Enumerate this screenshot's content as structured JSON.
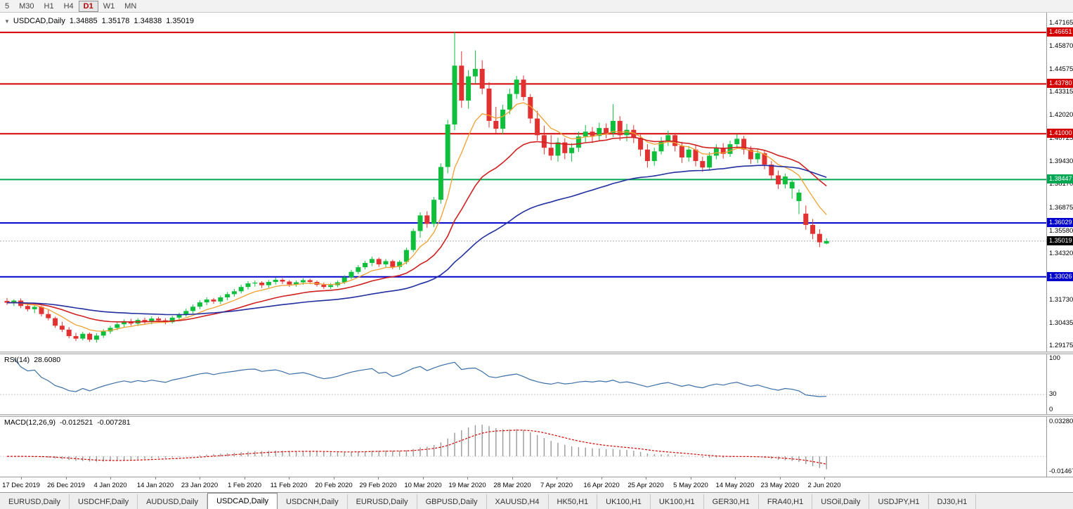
{
  "toolbar": {
    "timeframes": [
      {
        "label": "5",
        "active": false
      },
      {
        "label": "M30",
        "active": false
      },
      {
        "label": "H1",
        "active": false
      },
      {
        "label": "H4",
        "active": false
      },
      {
        "label": "D1",
        "active": true
      },
      {
        "label": "W1",
        "active": false
      },
      {
        "label": "MN",
        "active": false
      }
    ]
  },
  "chart": {
    "dropdown_icon": "▼",
    "symbol": "USDCAD,Daily",
    "ohlc": {
      "open": "1.34885",
      "high": "1.35178",
      "low": "1.34838",
      "close": "1.35019"
    },
    "colors": {
      "up": "#0fbf3c",
      "down": "#e23131",
      "ma_fast": "#efa02f",
      "ma_mid": "#d02020",
      "ma_slow": "#232fa0",
      "bid_line": "#aaaaaa"
    },
    "price_ticks": [
      "1.47165",
      "1.45870",
      "1.44575",
      "1.43315",
      "1.42020",
      "1.40725",
      "1.39430",
      "1.38170",
      "1.36875",
      "1.35580",
      "1.34320",
      "1.31730",
      "1.30435",
      "1.29175"
    ],
    "hlines": [
      {
        "value": 1.46651,
        "label": "1.46651",
        "color": "#d40000"
      },
      {
        "value": 1.4378,
        "label": "1.43780",
        "color": "#d40000"
      },
      {
        "value": 1.41,
        "label": "1.41000",
        "color": "#d40000"
      },
      {
        "value": 1.38447,
        "label": "1.38447",
        "color": "#00a651"
      },
      {
        "value": 1.36029,
        "label": "1.36029",
        "color": "#0000cc"
      },
      {
        "value": 1.33026,
        "label": "1.33026",
        "color": "#0000cc"
      }
    ],
    "current_price": {
      "value": 1.35019,
      "label": "1.35019",
      "badge_color": "#000000"
    },
    "dates": [
      "17 Dec 2019",
      "26 Dec 2019",
      "4 Jan 2020",
      "14 Jan 2020",
      "23 Jan 2020",
      "1 Feb 2020",
      "11 Feb 2020",
      "20 Feb 2020",
      "29 Feb 2020",
      "10 Mar 2020",
      "19 Mar 2020",
      "28 Mar 2020",
      "7 Apr 2020",
      "16 Apr 2020",
      "25 Apr 2020",
      "5 May 2020",
      "14 May 2020",
      "23 May 2020",
      "2 Jun 2020"
    ]
  },
  "chart_data": {
    "type": "candlestick",
    "symbol": "USDCAD",
    "timeframe": "Daily",
    "candles": [
      [
        1.3168,
        1.3185,
        1.3146,
        1.3158
      ],
      [
        1.3158,
        1.3177,
        1.314,
        1.317
      ],
      [
        1.317,
        1.3182,
        1.3128,
        1.314
      ],
      [
        1.314,
        1.3158,
        1.311,
        1.3122
      ],
      [
        1.3122,
        1.3145,
        1.31,
        1.3135
      ],
      [
        1.3135,
        1.3142,
        1.3082,
        1.3095
      ],
      [
        1.3095,
        1.3118,
        1.306,
        1.3072
      ],
      [
        1.3072,
        1.308,
        1.3018,
        1.303
      ],
      [
        1.303,
        1.3052,
        1.2995,
        1.3008
      ],
      [
        1.3008,
        1.3022,
        1.296,
        1.2972
      ],
      [
        1.2972,
        1.299,
        1.2945,
        1.2958
      ],
      [
        1.2958,
        1.2996,
        1.2948,
        1.2985
      ],
      [
        1.2985,
        1.2992,
        1.294,
        1.2952
      ],
      [
        1.2952,
        1.2988,
        1.2936,
        1.2975
      ],
      [
        1.2975,
        1.301,
        1.2962,
        1.2998
      ],
      [
        1.2998,
        1.303,
        1.2985,
        1.3018
      ],
      [
        1.3018,
        1.3048,
        1.3005,
        1.3038
      ],
      [
        1.3038,
        1.3065,
        1.3022,
        1.3055
      ],
      [
        1.3055,
        1.3068,
        1.303,
        1.3042
      ],
      [
        1.3042,
        1.3072,
        1.3028,
        1.3062
      ],
      [
        1.3062,
        1.3075,
        1.304,
        1.3052
      ],
      [
        1.3052,
        1.3082,
        1.3038,
        1.307
      ],
      [
        1.307,
        1.308,
        1.3048,
        1.306
      ],
      [
        1.306,
        1.3072,
        1.3038,
        1.305
      ],
      [
        1.305,
        1.3085,
        1.3042,
        1.3075
      ],
      [
        1.3075,
        1.3102,
        1.306,
        1.3092
      ],
      [
        1.3092,
        1.3125,
        1.308,
        1.3112
      ],
      [
        1.3112,
        1.3148,
        1.3098,
        1.3136
      ],
      [
        1.3136,
        1.3172,
        1.3122,
        1.316
      ],
      [
        1.316,
        1.3188,
        1.3145,
        1.3176
      ],
      [
        1.3176,
        1.3185,
        1.3152,
        1.3165
      ],
      [
        1.3165,
        1.3198,
        1.315,
        1.3188
      ],
      [
        1.3188,
        1.3218,
        1.3172,
        1.3206
      ],
      [
        1.3206,
        1.3235,
        1.3192,
        1.3222
      ],
      [
        1.3222,
        1.3258,
        1.321,
        1.3246
      ],
      [
        1.3246,
        1.3278,
        1.3232,
        1.3266
      ],
      [
        1.3266,
        1.3282,
        1.3248,
        1.327
      ],
      [
        1.327,
        1.3278,
        1.324,
        1.3256
      ],
      [
        1.3256,
        1.3285,
        1.3242,
        1.3274
      ],
      [
        1.3274,
        1.3298,
        1.326,
        1.3286
      ],
      [
        1.3286,
        1.3295,
        1.3262,
        1.3276
      ],
      [
        1.3276,
        1.3284,
        1.3246,
        1.326
      ],
      [
        1.326,
        1.3282,
        1.3248,
        1.3272
      ],
      [
        1.3272,
        1.3295,
        1.3258,
        1.3284
      ],
      [
        1.3284,
        1.3292,
        1.3262,
        1.3274
      ],
      [
        1.3274,
        1.3282,
        1.3248,
        1.3258
      ],
      [
        1.3258,
        1.327,
        1.3235,
        1.3246
      ],
      [
        1.3246,
        1.3268,
        1.3235,
        1.3256
      ],
      [
        1.3256,
        1.3282,
        1.3245,
        1.3272
      ],
      [
        1.3272,
        1.3312,
        1.3262,
        1.33
      ],
      [
        1.33,
        1.3342,
        1.329,
        1.333
      ],
      [
        1.333,
        1.3368,
        1.3318,
        1.3356
      ],
      [
        1.3356,
        1.3392,
        1.3344,
        1.338
      ],
      [
        1.338,
        1.3415,
        1.3362,
        1.3402
      ],
      [
        1.3402,
        1.341,
        1.3358,
        1.3372
      ],
      [
        1.3372,
        1.3402,
        1.3355,
        1.339
      ],
      [
        1.339,
        1.3398,
        1.3345,
        1.3358
      ],
      [
        1.3358,
        1.3395,
        1.3342,
        1.3386
      ],
      [
        1.3386,
        1.3465,
        1.3372,
        1.3452
      ],
      [
        1.3452,
        1.3572,
        1.344,
        1.3558
      ],
      [
        1.3558,
        1.3662,
        1.352,
        1.3645
      ],
      [
        1.3645,
        1.3668,
        1.3575,
        1.3598
      ],
      [
        1.3598,
        1.3748,
        1.358,
        1.3732
      ],
      [
        1.3732,
        1.3935,
        1.371,
        1.3915
      ],
      [
        1.3915,
        1.4178,
        1.388,
        1.4152
      ],
      [
        1.4152,
        1.4668,
        1.412,
        1.448
      ],
      [
        1.448,
        1.456,
        1.4245,
        1.4285
      ],
      [
        1.4285,
        1.4455,
        1.424,
        1.442
      ],
      [
        1.442,
        1.4565,
        1.438,
        1.4462
      ],
      [
        1.4462,
        1.451,
        1.432,
        1.4352
      ],
      [
        1.4352,
        1.4388,
        1.4135,
        1.4172
      ],
      [
        1.4172,
        1.425,
        1.4105,
        1.4128
      ],
      [
        1.4128,
        1.4262,
        1.4098,
        1.4235
      ],
      [
        1.4235,
        1.4352,
        1.421,
        1.4322
      ],
      [
        1.4322,
        1.4422,
        1.4295,
        1.4402
      ],
      [
        1.4402,
        1.4425,
        1.4285,
        1.4305
      ],
      [
        1.4305,
        1.4322,
        1.4158,
        1.4185
      ],
      [
        1.4185,
        1.4228,
        1.4062,
        1.4092
      ],
      [
        1.4092,
        1.4145,
        1.3985,
        1.4022
      ],
      [
        1.4022,
        1.4092,
        1.3952,
        1.3978
      ],
      [
        1.3978,
        1.4078,
        1.3945,
        1.4052
      ],
      [
        1.4052,
        1.4075,
        1.3958,
        1.3992
      ],
      [
        1.3992,
        1.4048,
        1.3945,
        1.4022
      ],
      [
        1.4022,
        1.4112,
        1.3998,
        1.4085
      ],
      [
        1.4085,
        1.4148,
        1.4052,
        1.4112
      ],
      [
        1.4112,
        1.4138,
        1.4048,
        1.4088
      ],
      [
        1.4088,
        1.4162,
        1.4062,
        1.4132
      ],
      [
        1.4132,
        1.4158,
        1.4075,
        1.4105
      ],
      [
        1.4105,
        1.4265,
        1.4082,
        1.4172
      ],
      [
        1.4172,
        1.4198,
        1.4062,
        1.4092
      ],
      [
        1.4092,
        1.4155,
        1.4058,
        1.4122
      ],
      [
        1.4122,
        1.4148,
        1.4048,
        1.4078
      ],
      [
        1.4078,
        1.4095,
        1.3975,
        1.4012
      ],
      [
        1.4012,
        1.4042,
        1.3912,
        1.3948
      ],
      [
        1.3948,
        1.4022,
        1.3922,
        1.4002
      ],
      [
        1.4002,
        1.4082,
        1.3985,
        1.4058
      ],
      [
        1.4058,
        1.4118,
        1.4032,
        1.4092
      ],
      [
        1.4092,
        1.4105,
        1.4002,
        1.4032
      ],
      [
        1.4032,
        1.4055,
        1.3938,
        1.3968
      ],
      [
        1.3968,
        1.4032,
        1.3945,
        1.4012
      ],
      [
        1.4012,
        1.4035,
        1.3918,
        1.3948
      ],
      [
        1.3948,
        1.3972,
        1.3888,
        1.3912
      ],
      [
        1.3912,
        1.3998,
        1.3895,
        1.3978
      ],
      [
        1.3978,
        1.4042,
        1.3958,
        1.4022
      ],
      [
        1.4022,
        1.4048,
        1.3962,
        1.3988
      ],
      [
        1.3988,
        1.4062,
        1.3972,
        1.4042
      ],
      [
        1.4042,
        1.4098,
        1.4018,
        1.4072
      ],
      [
        1.4072,
        1.4088,
        1.3985,
        1.4012
      ],
      [
        1.4012,
        1.4032,
        1.3932,
        1.3958
      ],
      [
        1.3958,
        1.4018,
        1.3935,
        1.3992
      ],
      [
        1.3992,
        1.4005,
        1.3902,
        1.3928
      ],
      [
        1.3928,
        1.3948,
        1.3842,
        1.3868
      ],
      [
        1.3868,
        1.3895,
        1.3792,
        1.3818
      ],
      [
        1.3818,
        1.3878,
        1.3795,
        1.3862
      ],
      [
        1.3795,
        1.3848,
        1.3738,
        1.3832
      ],
      [
        1.3725,
        1.379,
        1.3652,
        1.3772
      ],
      [
        1.3655,
        1.37,
        1.3565,
        1.3592
      ],
      [
        1.3592,
        1.3625,
        1.3512,
        1.3542
      ],
      [
        1.3542,
        1.3568,
        1.3468,
        1.3495
      ],
      [
        1.34885,
        1.35178,
        1.34838,
        1.35019
      ]
    ]
  },
  "rsi": {
    "name": "RSI(14)",
    "value": "28.6080",
    "period": 14,
    "line_color": "#3b6ea5",
    "levels": [
      {
        "value": 30
      }
    ],
    "axis_labels": [
      {
        "value": 100,
        "label": "100"
      },
      {
        "value": 30,
        "label": "30"
      },
      {
        "value": 0,
        "label": "0"
      }
    ]
  },
  "macd": {
    "name": "MACD(12,26,9)",
    "value_main": "-0.012521",
    "value_signal": "-0.007281",
    "fast": 12,
    "slow": 26,
    "signal": 9,
    "histogram_color": "#9a9a9a",
    "signal_color": "#d40000",
    "axis_labels": [
      {
        "value": 0.0328,
        "label": "0.03280"
      },
      {
        "value": -0.01467,
        "label": "-0.01467"
      }
    ]
  },
  "tabs": [
    {
      "label": "EURUSD,Daily",
      "active": false
    },
    {
      "label": "USDCHF,Daily",
      "active": false
    },
    {
      "label": "AUDUSD,Daily",
      "active": false
    },
    {
      "label": "USDCAD,Daily",
      "active": true
    },
    {
      "label": "USDCNH,Daily",
      "active": false
    },
    {
      "label": "EURUSD,Daily",
      "active": false
    },
    {
      "label": "GBPUSD,Daily",
      "active": false
    },
    {
      "label": "XAUUSD,H4",
      "active": false
    },
    {
      "label": "HK50,H1",
      "active": false
    },
    {
      "label": "UK100,H1",
      "active": false
    },
    {
      "label": "UK100,H1",
      "active": false
    },
    {
      "label": "GER30,H1",
      "active": false
    },
    {
      "label": "FRA40,H1",
      "active": false
    },
    {
      "label": "USOil,Daily",
      "active": false
    },
    {
      "label": "USDJPY,H1",
      "active": false
    },
    {
      "label": "DJ30,H1",
      "active": false
    }
  ]
}
